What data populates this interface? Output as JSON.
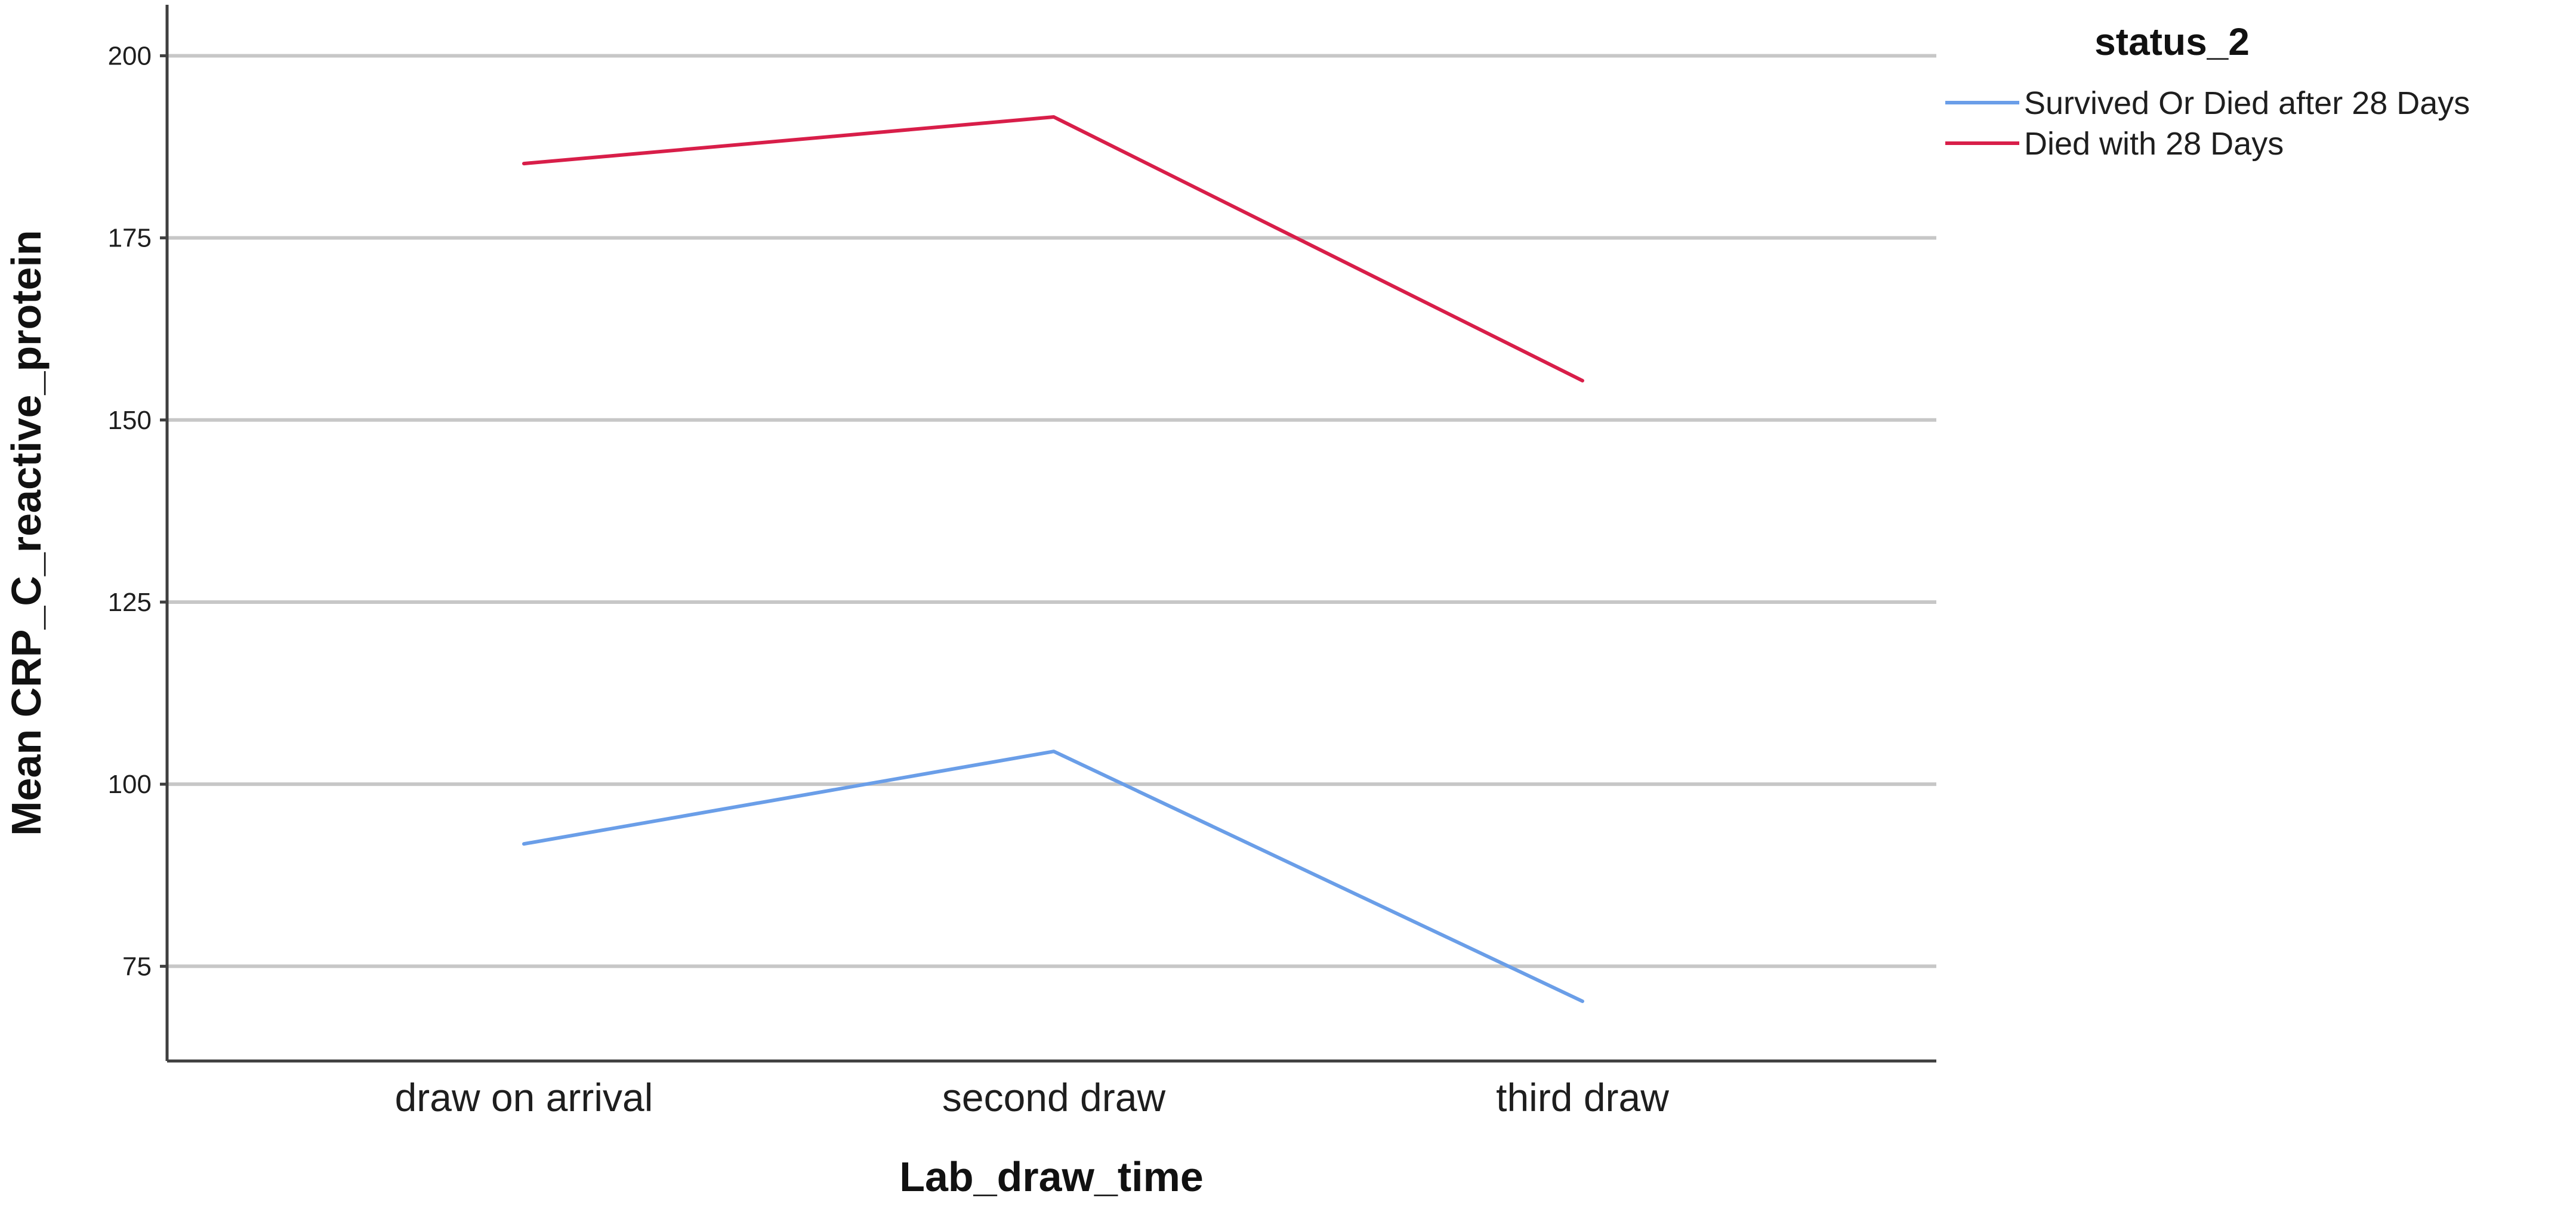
{
  "chart_data": {
    "type": "line",
    "xlabel": "Lab_draw_time",
    "ylabel": "Mean CRP_C_reactive_protein",
    "categories": [
      "draw on arrival",
      "second draw",
      "third draw"
    ],
    "ylim": [
      62,
      207
    ],
    "yticks": [
      75,
      100,
      125,
      150,
      175,
      200
    ],
    "grid": true,
    "legend": {
      "title": "status_2",
      "placement": "right-top"
    },
    "series": [
      {
        "name": "Survived Or Died after 28 Days",
        "color": "#6a9ee8",
        "values": [
          91.8,
          104.5,
          70.2
        ]
      },
      {
        "name": "Died with 28 Days",
        "color": "#d81e49",
        "values": [
          185.2,
          191.6,
          155.4
        ]
      }
    ]
  }
}
